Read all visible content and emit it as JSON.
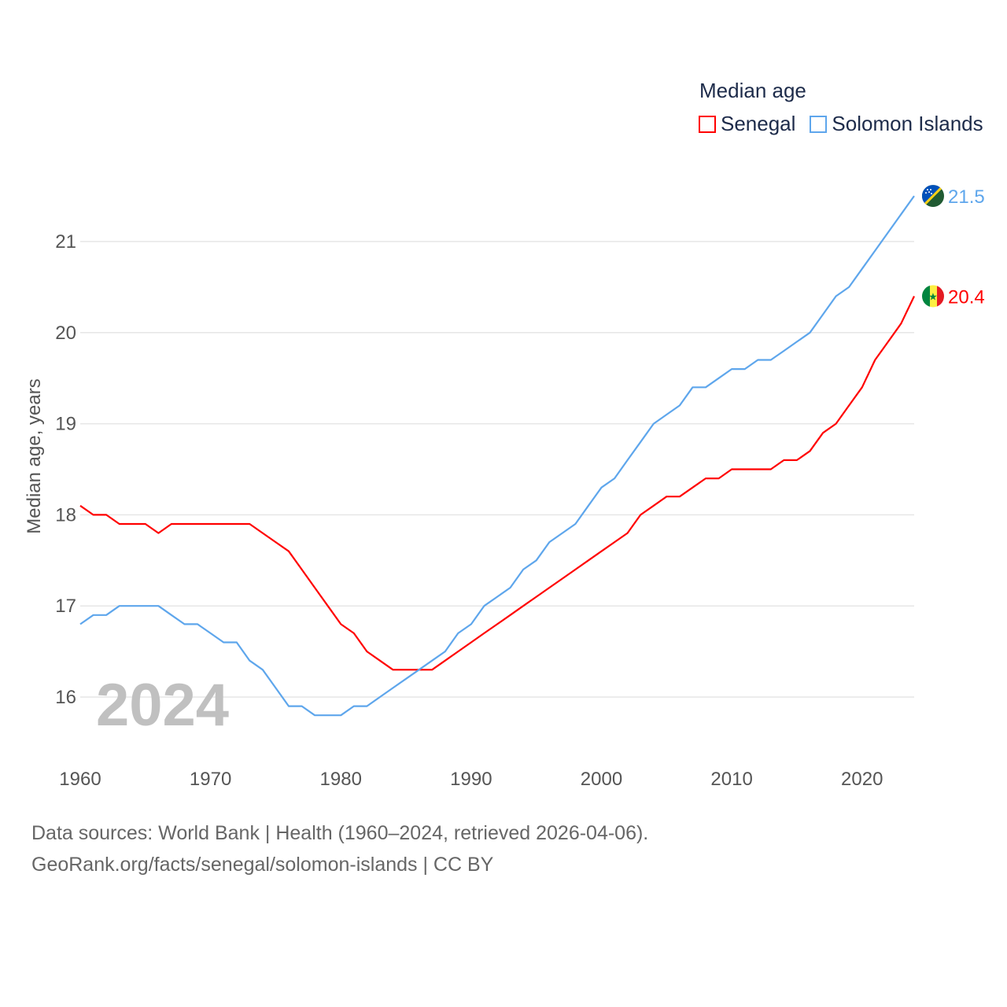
{
  "chart_data": {
    "type": "line",
    "legend_title": "Median age",
    "legend_position": "top-right",
    "ylabel": "Median age, years",
    "xlabel": "",
    "ylim": [
      15.4,
      21.8
    ],
    "xlim": [
      1960,
      2024
    ],
    "y_ticks": [
      "16",
      "17",
      "18",
      "19",
      "20",
      "21"
    ],
    "x_ticks": [
      "1960",
      "1970",
      "1980",
      "1990",
      "2000",
      "2010",
      "2020"
    ],
    "grid": true,
    "year_label": "2024",
    "x": [
      1960,
      1961,
      1962,
      1963,
      1964,
      1965,
      1966,
      1967,
      1968,
      1969,
      1970,
      1971,
      1972,
      1973,
      1974,
      1975,
      1976,
      1977,
      1978,
      1979,
      1980,
      1981,
      1982,
      1983,
      1984,
      1985,
      1986,
      1987,
      1988,
      1989,
      1990,
      1991,
      1992,
      1993,
      1994,
      1995,
      1996,
      1997,
      1998,
      1999,
      2000,
      2001,
      2002,
      2003,
      2004,
      2005,
      2006,
      2007,
      2008,
      2009,
      2010,
      2011,
      2012,
      2013,
      2014,
      2015,
      2016,
      2017,
      2018,
      2019,
      2020,
      2021,
      2022,
      2023,
      2024
    ],
    "series": [
      {
        "name": "Senegal",
        "color": "#ff0000",
        "end_label": "20.4",
        "values": [
          18.1,
          18.0,
          18.0,
          17.9,
          17.9,
          17.9,
          17.8,
          17.9,
          17.9,
          17.9,
          17.9,
          17.9,
          17.9,
          17.9,
          17.8,
          17.7,
          17.6,
          17.4,
          17.2,
          17.0,
          16.8,
          16.7,
          16.5,
          16.4,
          16.3,
          16.3,
          16.3,
          16.3,
          16.4,
          16.5,
          16.6,
          16.7,
          16.8,
          16.9,
          17.0,
          17.1,
          17.2,
          17.3,
          17.4,
          17.5,
          17.6,
          17.7,
          17.8,
          18.0,
          18.1,
          18.2,
          18.2,
          18.3,
          18.4,
          18.4,
          18.5,
          18.5,
          18.5,
          18.5,
          18.6,
          18.6,
          18.7,
          18.9,
          19.0,
          19.2,
          19.4,
          19.7,
          19.9,
          20.1,
          20.4
        ]
      },
      {
        "name": "Solomon Islands",
        "color": "#5ea6ec",
        "end_label": "21.5",
        "values": [
          16.8,
          16.9,
          16.9,
          17.0,
          17.0,
          17.0,
          17.0,
          16.9,
          16.8,
          16.8,
          16.7,
          16.6,
          16.6,
          16.4,
          16.3,
          16.1,
          15.9,
          15.9,
          15.8,
          15.8,
          15.8,
          15.9,
          15.9,
          16.0,
          16.1,
          16.2,
          16.3,
          16.4,
          16.5,
          16.7,
          16.8,
          17.0,
          17.1,
          17.2,
          17.4,
          17.5,
          17.7,
          17.8,
          17.9,
          18.1,
          18.3,
          18.4,
          18.6,
          18.8,
          19.0,
          19.1,
          19.2,
          19.4,
          19.4,
          19.5,
          19.6,
          19.6,
          19.7,
          19.7,
          19.8,
          19.9,
          20.0,
          20.2,
          20.4,
          20.5,
          20.7,
          20.9,
          21.1,
          21.3,
          21.5
        ]
      }
    ]
  },
  "source": {
    "line1": "Data sources: World Bank | Health (1960–2024, retrieved 2026-04-06).",
    "line2": "GeoRank.org/facts/senegal/solomon-islands | CC BY"
  }
}
